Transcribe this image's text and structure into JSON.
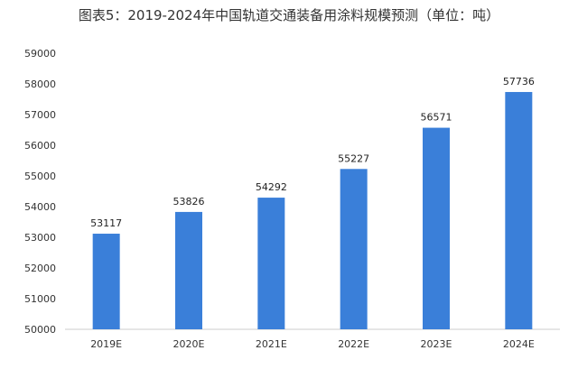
{
  "chart_data": {
    "type": "bar",
    "title": "图表5：2019-2024年中国轨道交通装备用涂料规模预测（单位：吨）",
    "categories": [
      "2019E",
      "2020E",
      "2021E",
      "2022E",
      "2023E",
      "2024E"
    ],
    "values": [
      53117,
      53826,
      54292,
      55227,
      56571,
      57736
    ],
    "data_labels": [
      "53117",
      "53826",
      "54292",
      "55227",
      "56571",
      "57736"
    ],
    "ylim": [
      50000,
      59000
    ],
    "y_ticks": [
      "50000",
      "51000",
      "52000",
      "53000",
      "54000",
      "55000",
      "56000",
      "57000",
      "58000",
      "59000"
    ],
    "xlabel": "",
    "ylabel": "",
    "grid": false,
    "legend": "none",
    "bar_color": "#3a7fd9"
  }
}
